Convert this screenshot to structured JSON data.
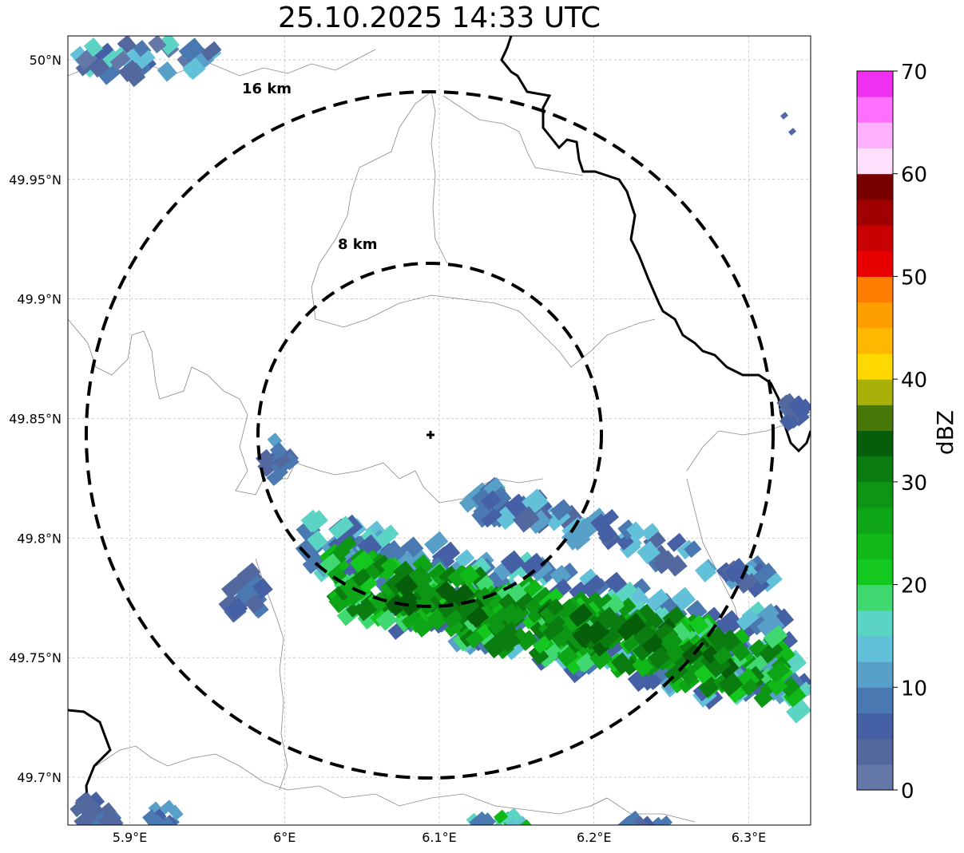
{
  "title": "25.10.2025 14:33 UTC",
  "map": {
    "lon_range": [
      5.86,
      6.34
    ],
    "lat_range": [
      49.68,
      50.01
    ],
    "lon_ticks": [
      {
        "value": 5.9,
        "label": "5.9°E"
      },
      {
        "value": 6.0,
        "label": "6°E"
      },
      {
        "value": 6.1,
        "label": "6.1°E"
      },
      {
        "value": 6.2,
        "label": "6.2°E"
      },
      {
        "value": 6.3,
        "label": "6.3°E"
      }
    ],
    "lat_ticks": [
      {
        "value": 50.0,
        "label": "50°N"
      },
      {
        "value": 49.95,
        "label": "49.95°N"
      },
      {
        "value": 49.9,
        "label": "49.9°N"
      },
      {
        "value": 49.85,
        "label": "49.85°N"
      },
      {
        "value": 49.8,
        "label": "49.8°N"
      },
      {
        "value": 49.75,
        "label": "49.75°N"
      },
      {
        "value": 49.7,
        "label": "49.7°N"
      }
    ],
    "radar_site": {
      "lon": 6.095,
      "lat": 49.843,
      "marker": "plus-marker"
    },
    "range_rings": [
      {
        "label": "8 km",
        "km": 8
      },
      {
        "label": "16 km",
        "km": 16
      }
    ],
    "gridlines": true
  },
  "colorbar": {
    "label": "dBZ",
    "min": 0,
    "max": 70,
    "ticks": [
      "0",
      "10",
      "20",
      "30",
      "40",
      "50",
      "60",
      "70"
    ],
    "colors": [
      "#6478a8",
      "#5468a0",
      "#4660a6",
      "#4a78b0",
      "#58a0c8",
      "#62c0d8",
      "#5cd4c4",
      "#40d870",
      "#14c820",
      "#10b818",
      "#0ea616",
      "#0c9614",
      "#0a7c10",
      "#065e0a",
      "#487808",
      "#aab00a",
      "#ffd800",
      "#ffb800",
      "#ff9e00",
      "#ff7e00",
      "#e80000",
      "#c80000",
      "#a00000",
      "#780000",
      "#ffe0ff",
      "#ffb0ff",
      "#ff70ff",
      "#f030f0"
    ]
  }
}
